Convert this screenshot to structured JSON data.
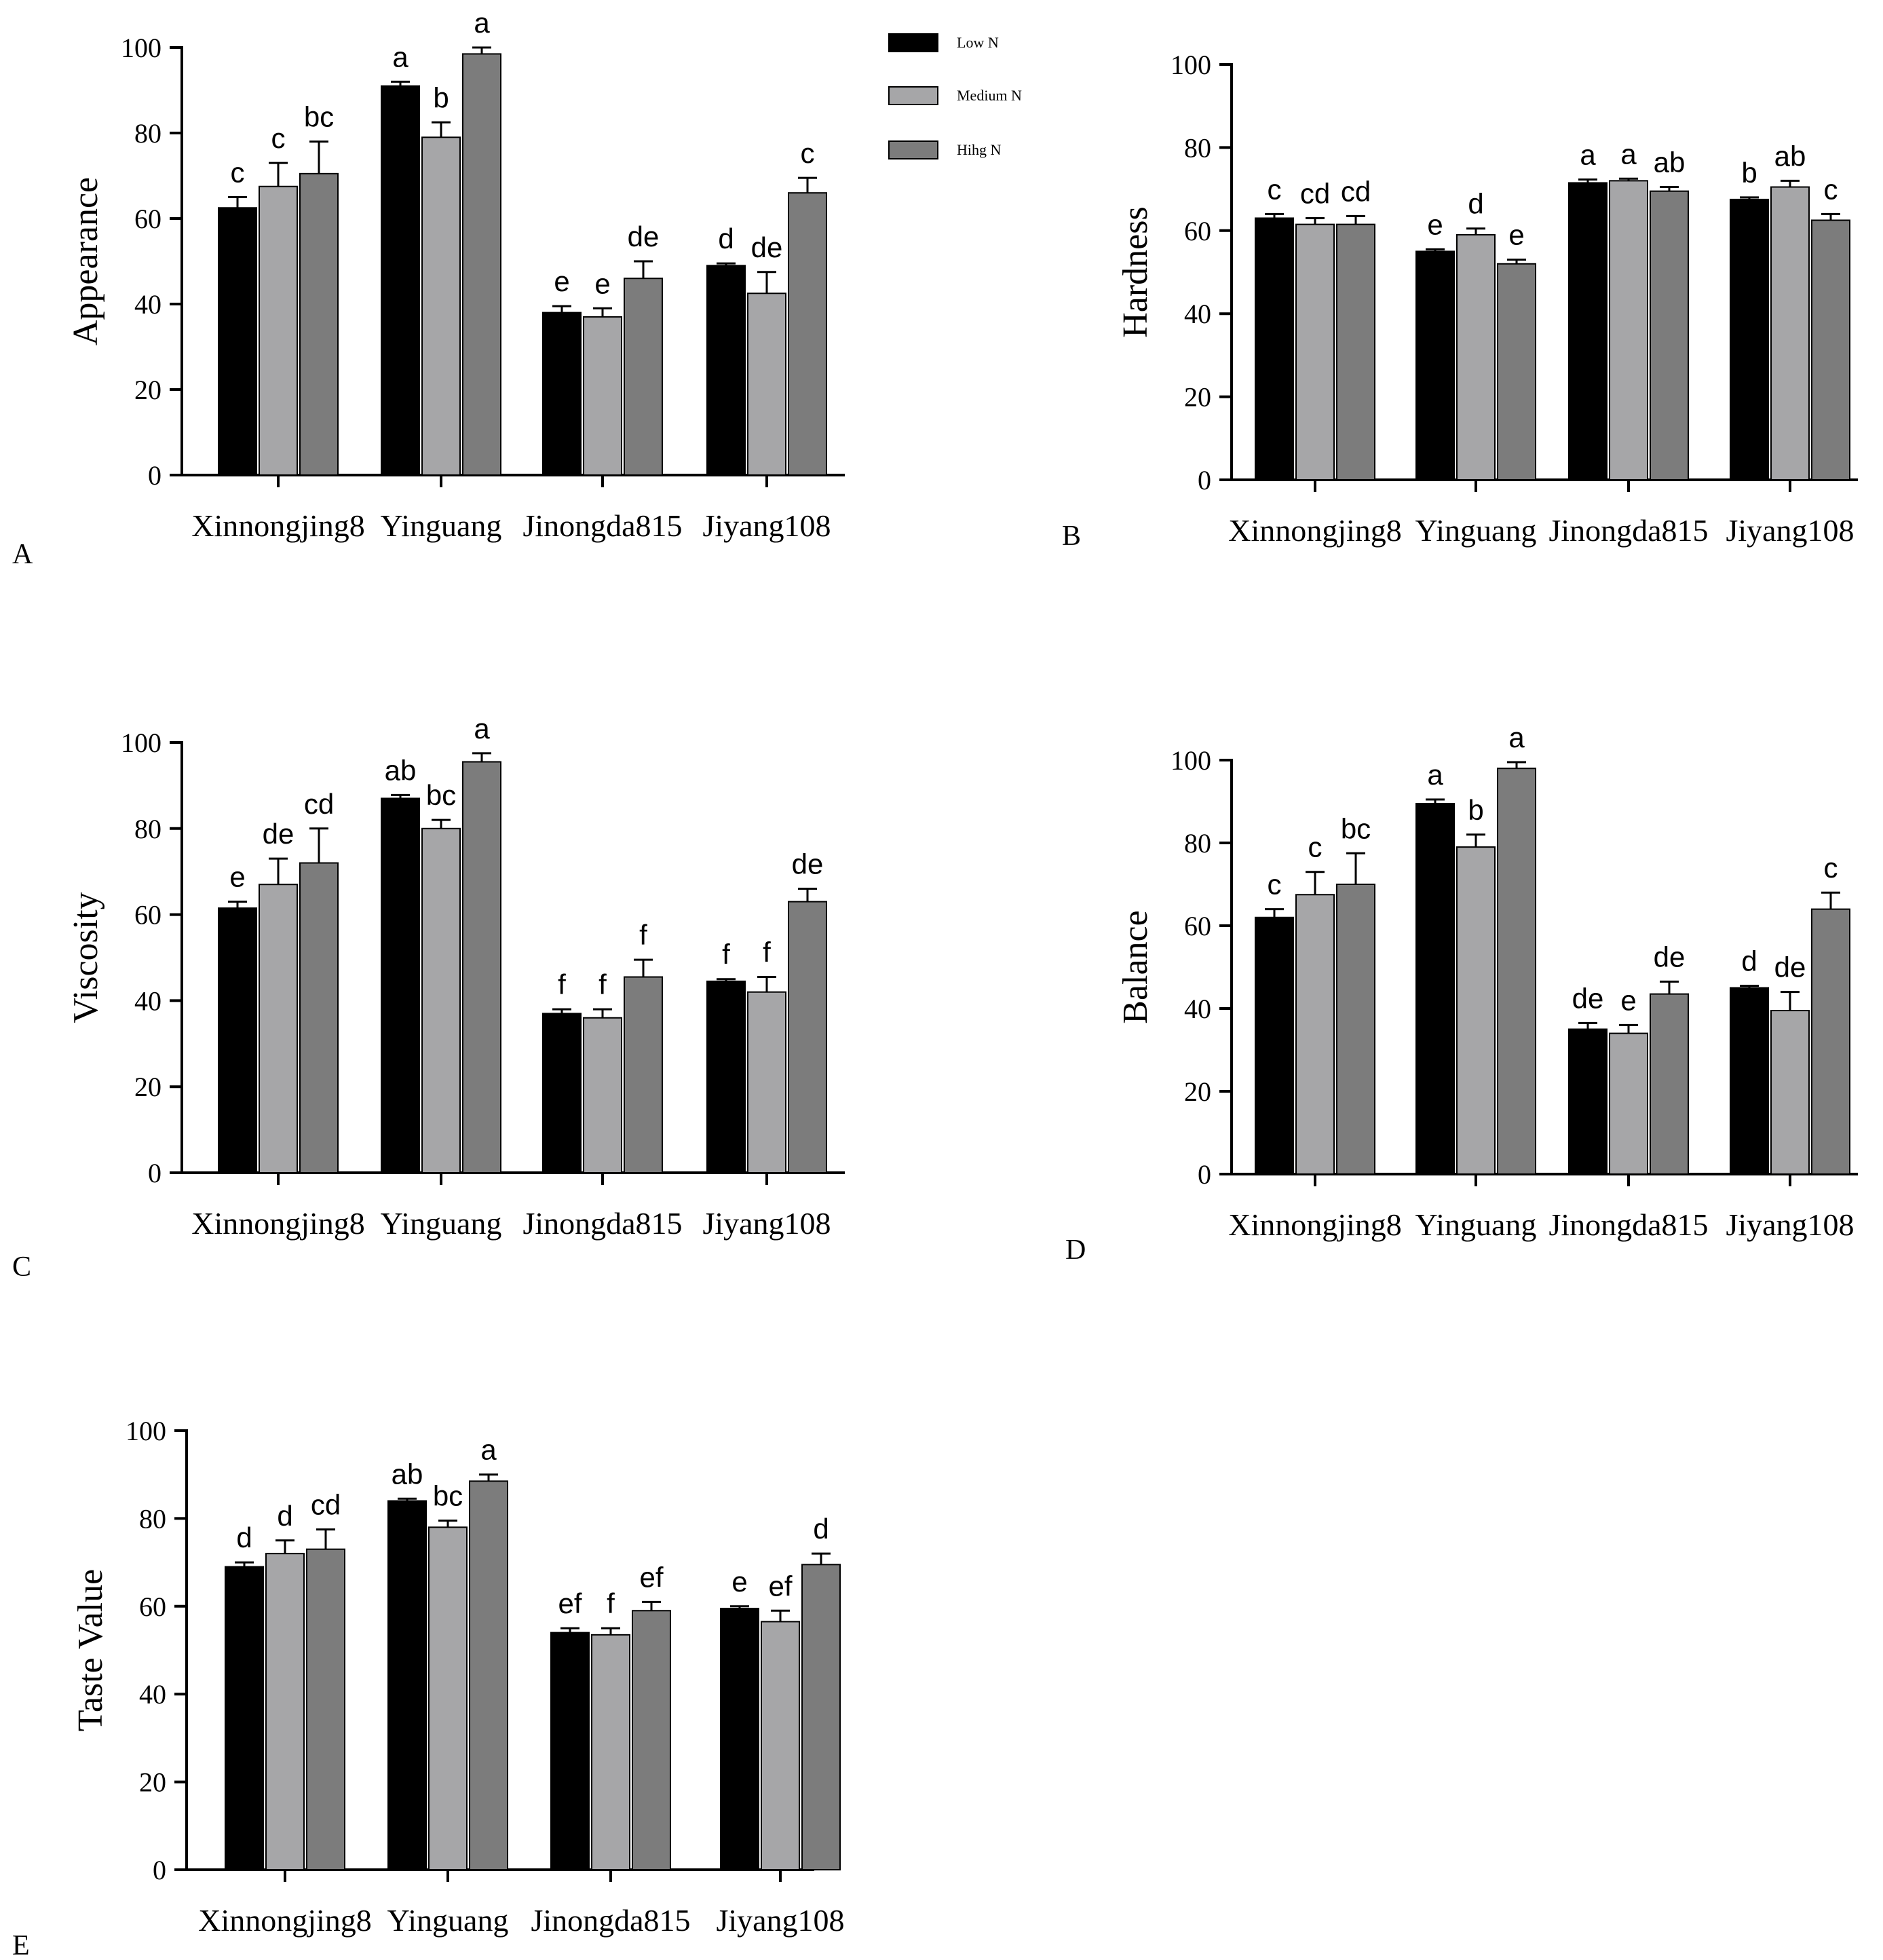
{
  "colors": {
    "low": "#000000",
    "medium": "#a6a6a8",
    "high": "#7c7c7c",
    "axis": "#000000"
  },
  "legend": {
    "entries": [
      {
        "key": "low",
        "label": "Low N"
      },
      {
        "key": "medium",
        "label": "Medium N"
      },
      {
        "key": "high",
        "label": "Hihg N"
      }
    ]
  },
  "chart_data": [
    {
      "panel": "A",
      "type": "bar",
      "ylabel": "Appearance",
      "xlabel": "",
      "ylim": [
        0,
        100
      ],
      "yticks": [
        "0",
        "20",
        "40",
        "60",
        "80",
        "100"
      ],
      "categories": [
        "Xinnongjing8",
        "Yinguang",
        "Jinongda815",
        "Jiyang108"
      ],
      "series": [
        {
          "name": "Low N",
          "key": "low",
          "values": [
            62.5,
            91,
            38,
            49
          ],
          "errors": [
            2.5,
            1,
            1.5,
            0.5
          ],
          "letters": [
            "c",
            "a",
            "e",
            "d"
          ]
        },
        {
          "name": "Medium N",
          "key": "medium",
          "values": [
            67.5,
            79,
            37,
            42.5
          ],
          "errors": [
            5.5,
            3.5,
            2,
            5
          ],
          "letters": [
            "c",
            "b",
            "e",
            "de"
          ]
        },
        {
          "name": "Hihg N",
          "key": "high",
          "values": [
            70.5,
            98.5,
            46,
            66
          ],
          "errors": [
            7.5,
            1.5,
            4,
            3.5
          ],
          "letters": [
            "bc",
            "a",
            "de",
            "c"
          ]
        }
      ]
    },
    {
      "panel": "B",
      "type": "bar",
      "ylabel": "Hardness",
      "xlabel": "",
      "ylim": [
        0,
        100
      ],
      "yticks": [
        "0",
        "20",
        "40",
        "60",
        "80",
        "100"
      ],
      "categories": [
        "Xinnongjing8",
        "Yinguang",
        "Jinongda815",
        "Jiyang108"
      ],
      "series": [
        {
          "name": "Low N",
          "key": "low",
          "values": [
            63,
            55,
            71.5,
            67.5
          ],
          "errors": [
            1,
            0.5,
            0.8,
            0.5
          ],
          "letters": [
            "c",
            "e",
            "a",
            "b"
          ]
        },
        {
          "name": "Medium N",
          "key": "medium",
          "values": [
            61.5,
            59,
            72,
            70.5
          ],
          "errors": [
            1.5,
            1.5,
            0.5,
            1.5
          ],
          "letters": [
            "cd",
            "d",
            "a",
            "ab"
          ]
        },
        {
          "name": "Hihg N",
          "key": "high",
          "values": [
            61.5,
            52,
            69.5,
            62.5
          ],
          "errors": [
            2,
            1,
            1,
            1.5
          ],
          "letters": [
            "cd",
            "e",
            "ab",
            "c"
          ]
        }
      ]
    },
    {
      "panel": "C",
      "type": "bar",
      "ylabel": "Viscosity",
      "xlabel": "",
      "ylim": [
        0,
        100
      ],
      "yticks": [
        "0",
        "20",
        "40",
        "60",
        "80",
        "100"
      ],
      "categories": [
        "Xinnongjing8",
        "Yinguang",
        "Jinongda815",
        "Jiyang108"
      ],
      "series": [
        {
          "name": "Low N",
          "key": "low",
          "values": [
            61.5,
            87,
            37,
            44.5
          ],
          "errors": [
            1.5,
            0.8,
            1,
            0.5
          ],
          "letters": [
            "e",
            "ab",
            "f",
            "f"
          ]
        },
        {
          "name": "Medium N",
          "key": "medium",
          "values": [
            67,
            80,
            36,
            42
          ],
          "errors": [
            6,
            2,
            2,
            3.5
          ],
          "letters": [
            "de",
            "bc",
            "f",
            "f"
          ]
        },
        {
          "name": "Hihg N",
          "key": "high",
          "values": [
            72,
            95.5,
            45.5,
            63
          ],
          "errors": [
            8,
            2,
            4,
            3
          ],
          "letters": [
            "cd",
            "a",
            "f",
            "de"
          ]
        }
      ]
    },
    {
      "panel": "D",
      "type": "bar",
      "ylabel": "Balance",
      "xlabel": "",
      "ylim": [
        0,
        100
      ],
      "yticks": [
        "0",
        "20",
        "40",
        "60",
        "80",
        "100"
      ],
      "categories": [
        "Xinnongjing8",
        "Yinguang",
        "Jinongda815",
        "Jiyang108"
      ],
      "series": [
        {
          "name": "Low N",
          "key": "low",
          "values": [
            62,
            89.5,
            35,
            45
          ],
          "errors": [
            2,
            1,
            1.5,
            0.5
          ],
          "letters": [
            "c",
            "a",
            "de",
            "d"
          ]
        },
        {
          "name": "Medium N",
          "key": "medium",
          "values": [
            67.5,
            79,
            34,
            39.5
          ],
          "errors": [
            5.5,
            3,
            2,
            4.5
          ],
          "letters": [
            "c",
            "b",
            "e",
            "de"
          ]
        },
        {
          "name": "Hihg N",
          "key": "high",
          "values": [
            70,
            98,
            43.5,
            64
          ],
          "errors": [
            7.5,
            1.5,
            3,
            4
          ],
          "letters": [
            "bc",
            "a",
            "de",
            "c"
          ]
        }
      ]
    },
    {
      "panel": "E",
      "type": "bar",
      "ylabel": "Taste Value",
      "xlabel": "",
      "ylim": [
        0,
        100
      ],
      "yticks": [
        "0",
        "20",
        "40",
        "60",
        "80",
        "100"
      ],
      "categories": [
        "Xinnongjing8",
        "Yinguang",
        "Jinongda815",
        "Jiyang108"
      ],
      "series": [
        {
          "name": "Low N",
          "key": "low",
          "values": [
            69,
            84,
            54,
            59.5
          ],
          "errors": [
            1,
            0.5,
            1,
            0.5
          ],
          "letters": [
            "d",
            "ab",
            "ef",
            "e"
          ]
        },
        {
          "name": "Medium N",
          "key": "medium",
          "values": [
            72,
            78,
            53.5,
            56.5
          ],
          "errors": [
            3,
            1.5,
            1.5,
            2.5
          ],
          "letters": [
            "d",
            "bc",
            "f",
            "ef"
          ]
        },
        {
          "name": "Hihg N",
          "key": "high",
          "values": [
            73,
            88.5,
            59,
            69.5
          ],
          "errors": [
            4.5,
            1.5,
            2,
            2.5
          ],
          "letters": [
            "cd",
            "a",
            "ef",
            "d"
          ]
        }
      ]
    }
  ]
}
